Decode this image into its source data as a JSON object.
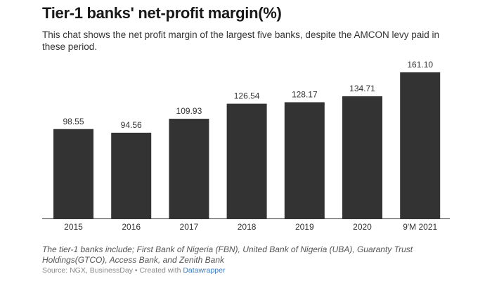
{
  "chart_data": {
    "type": "bar",
    "title": "Tier-1 banks' net-profit margin(%)",
    "subtitle": "This chat shows the net profit margin of the largest five banks, despite the AMCON levy paid in these period.",
    "categories": [
      "2015",
      "2016",
      "2017",
      "2018",
      "2019",
      "2020",
      "9'M 2021"
    ],
    "values": [
      98.55,
      94.56,
      109.93,
      126.54,
      128.17,
      134.71,
      161.1
    ],
    "value_labels": [
      "98.55",
      "94.56",
      "109.93",
      "126.54",
      "128.17",
      "134.71",
      "161.10"
    ],
    "ylim": [
      0,
      161.1
    ],
    "grid": false,
    "bar_color": "#333333",
    "notes": "The tier-1 banks include; First Bank of Nigeria (FBN), United Bank of Nigeria (UBA), Guaranty Trust Holdings(GTCO), Access Bank, and Zenith Bank"
  },
  "footer": {
    "source_prefix": "Source: NGX, BusinessDay • Created with ",
    "source_link": "Datawrapper",
    "link_color": "#3a7cc2"
  }
}
